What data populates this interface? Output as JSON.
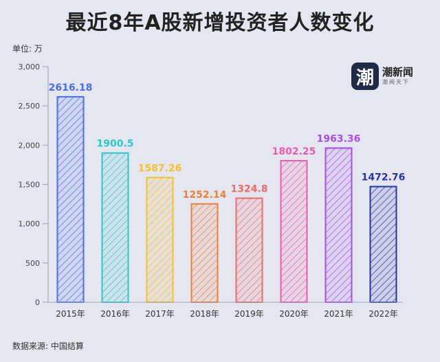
{
  "title": "最近8年A股新增投资者人数变化",
  "unit_label": "单位: 万",
  "source_label": "数据来源: 中国结算",
  "logo": {
    "name": "潮新闻",
    "glyph": "潮",
    "tagline": "潮闻天下"
  },
  "chart_data": {
    "type": "bar",
    "categories": [
      "2015年",
      "2016年",
      "2017年",
      "2018年",
      "2019年",
      "2020年",
      "2021年",
      "2022年"
    ],
    "values": [
      2616.18,
      1900.5,
      1587.26,
      1252.14,
      1324.8,
      1802.25,
      1963.36,
      1472.76
    ],
    "value_labels": [
      "2616.18",
      "1900.5",
      "1587.26",
      "1252.14",
      "1324.8",
      "1802.25",
      "1963.36",
      "1472.76"
    ],
    "colors": [
      "#4a6cf7",
      "#2ec8c8",
      "#f5c02c",
      "#f07f3a",
      "#f06a6a",
      "#f05aa8",
      "#a64cf0",
      "#2a34a8"
    ],
    "ylim": [
      0,
      3000
    ],
    "yticks": [
      0,
      500,
      1000,
      1500,
      2000,
      2500,
      3000
    ],
    "ytick_labels": [
      "0",
      "500",
      "1,000",
      "1,500",
      "2,000",
      "2,500",
      "3,000"
    ],
    "grid": false,
    "title": "最近8年A股新增投资者人数变化",
    "xlabel": "",
    "ylabel": "单位: 万"
  }
}
